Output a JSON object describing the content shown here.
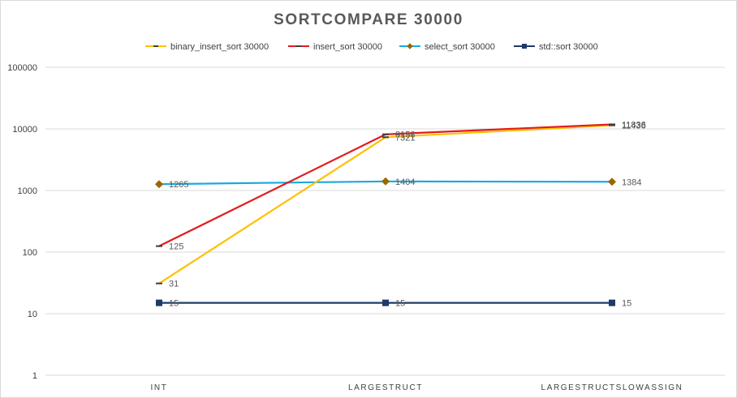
{
  "chart_data": {
    "type": "line",
    "title": "SORTCOMPARE 30000",
    "xlabel": "",
    "ylabel": "",
    "y_scale": "log10",
    "ylim": [
      1,
      100000
    ],
    "grid": "horizontal",
    "legend_position": "top",
    "categories": [
      "INT",
      "LARGESTRUCT",
      "LARGESTRUCTSLOWASSIGN"
    ],
    "y_ticks": [
      "1",
      "10",
      "100",
      "1000",
      "10000",
      "100000"
    ],
    "series": [
      {
        "name": "binary_insert_sort 30000",
        "color": "#FFC000",
        "marker": "dash",
        "values": [
          31,
          7321,
          11436
        ],
        "labels": [
          "31",
          "7321",
          "11436"
        ]
      },
      {
        "name": "insert_sort 30000",
        "color": "#E31A1C",
        "marker": "dash",
        "values": [
          125,
          8158,
          11836
        ],
        "labels": [
          "125",
          "8158",
          "11836"
        ]
      },
      {
        "name": "select_sort 30000",
        "color": "#1CA9E0",
        "marker": "diamond",
        "marker_color": "#9C6500",
        "values": [
          1265,
          1404,
          1384
        ],
        "labels": [
          "1265",
          "1404",
          "1384"
        ]
      },
      {
        "name": "std::sort 30000",
        "color": "#1F3A68",
        "marker": "square",
        "values": [
          15,
          15,
          15
        ],
        "labels": [
          "15",
          "15",
          "15"
        ]
      }
    ]
  }
}
